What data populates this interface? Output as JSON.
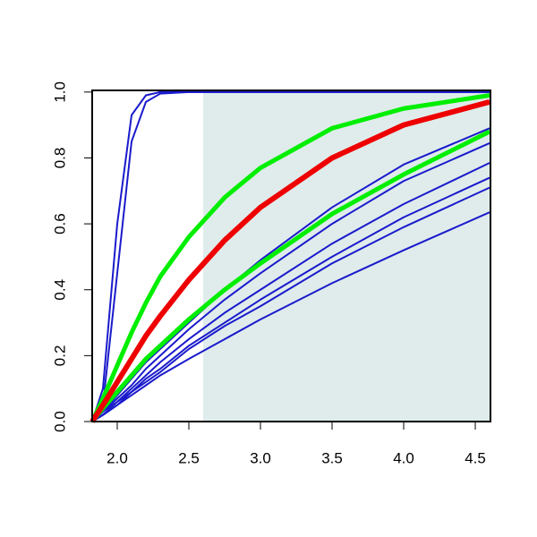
{
  "chart_data": {
    "type": "line",
    "x": [
      1.825,
      1.9,
      2.0,
      2.1,
      2.2,
      2.3,
      2.5,
      2.75,
      3.0,
      3.5,
      4.0,
      4.6
    ],
    "series": [
      {
        "color": "#1a1acc",
        "width": 2,
        "values": [
          0,
          0.1,
          0.6,
          0.93,
          0.99,
          1,
          1,
          1,
          1,
          1,
          1,
          1
        ]
      },
      {
        "color": "#1a1acc",
        "width": 2,
        "values": [
          0,
          0.05,
          0.45,
          0.85,
          0.97,
          0.995,
          1,
          1,
          1,
          1,
          1,
          1
        ]
      },
      {
        "color": "#1a1acc",
        "width": 2,
        "values": [
          0,
          0.03,
          0.08,
          0.13,
          0.18,
          0.22,
          0.3,
          0.4,
          0.49,
          0.65,
          0.78,
          0.89
        ]
      },
      {
        "color": "#1a1acc",
        "width": 2,
        "values": [
          0,
          0.03,
          0.07,
          0.11,
          0.16,
          0.2,
          0.28,
          0.37,
          0.45,
          0.6,
          0.73,
          0.845
        ]
      },
      {
        "color": "#1a1acc",
        "width": 2,
        "values": [
          0,
          0.03,
          0.06,
          0.1,
          0.14,
          0.18,
          0.25,
          0.33,
          0.4,
          0.54,
          0.66,
          0.785
        ]
      },
      {
        "color": "#1a1acc",
        "width": 2,
        "values": [
          0,
          0.02,
          0.06,
          0.09,
          0.13,
          0.16,
          0.23,
          0.3,
          0.37,
          0.5,
          0.62,
          0.74
        ]
      },
      {
        "color": "#1a1acc",
        "width": 2,
        "values": [
          0,
          0.02,
          0.05,
          0.09,
          0.12,
          0.15,
          0.22,
          0.29,
          0.35,
          0.48,
          0.59,
          0.71
        ]
      },
      {
        "color": "#1a1acc",
        "width": 2,
        "values": [
          0,
          0.02,
          0.05,
          0.08,
          0.11,
          0.14,
          0.19,
          0.25,
          0.31,
          0.42,
          0.52,
          0.635
        ]
      },
      {
        "color": "#00ee00",
        "width": 5,
        "values": [
          0,
          0.04,
          0.09,
          0.14,
          0.19,
          0.23,
          0.31,
          0.4,
          0.48,
          0.63,
          0.75,
          0.88
        ]
      },
      {
        "color": "#00ee00",
        "width": 5,
        "values": [
          0,
          0.07,
          0.17,
          0.27,
          0.36,
          0.44,
          0.56,
          0.68,
          0.77,
          0.89,
          0.95,
          0.99
        ]
      },
      {
        "color": "#ee0000",
        "width": 6,
        "values": [
          0,
          0.05,
          0.12,
          0.19,
          0.26,
          0.32,
          0.43,
          0.55,
          0.65,
          0.8,
          0.9,
          0.97
        ]
      }
    ],
    "shaded_region": {
      "x": [
        2.6,
        4.606
      ],
      "y": [
        0,
        1
      ],
      "color": "#dfeceb"
    },
    "xlim": [
      1.825,
      4.606
    ],
    "ylim": [
      0,
      1.005
    ],
    "xticks": [
      {
        "value": 2.0,
        "label": "2.0"
      },
      2.5,
      {
        "value": 3.0,
        "label": "3.0"
      },
      3.5,
      {
        "value": 4.0,
        "label": "4.0"
      },
      4.5
    ],
    "yticks": [
      {
        "value": 0.0,
        "label": "0.0"
      },
      0.2,
      0.4,
      0.6,
      0.8,
      {
        "value": 1.0,
        "label": "1.0"
      }
    ]
  }
}
